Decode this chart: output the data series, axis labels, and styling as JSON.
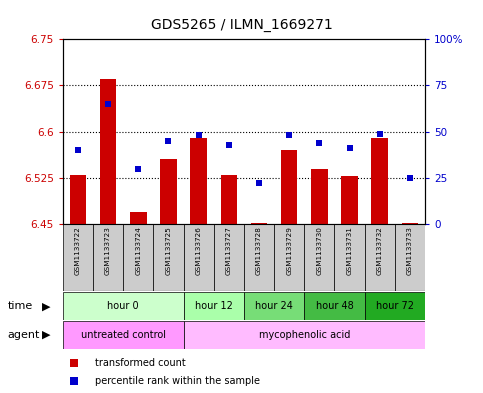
{
  "title": "GDS5265 / ILMN_1669271",
  "samples": [
    "GSM1133722",
    "GSM1133723",
    "GSM1133724",
    "GSM1133725",
    "GSM1133726",
    "GSM1133727",
    "GSM1133728",
    "GSM1133729",
    "GSM1133730",
    "GSM1133731",
    "GSM1133732",
    "GSM1133733"
  ],
  "bar_values": [
    6.53,
    6.685,
    6.47,
    6.555,
    6.59,
    6.53,
    6.452,
    6.57,
    6.54,
    6.528,
    6.59,
    6.452
  ],
  "bar_base": 6.45,
  "dot_values": [
    40,
    65,
    30,
    45,
    48,
    43,
    22,
    48,
    44,
    41,
    49,
    25
  ],
  "ylim_left": [
    6.45,
    6.75
  ],
  "ylim_right": [
    0,
    100
  ],
  "yticks_left": [
    6.45,
    6.525,
    6.6,
    6.675,
    6.75
  ],
  "yticks_right": [
    0,
    25,
    50,
    75,
    100
  ],
  "ytick_labels_left": [
    "6.45",
    "6.525",
    "6.6",
    "6.675",
    "6.75"
  ],
  "ytick_labels_right": [
    "0",
    "25",
    "50",
    "75",
    "100%"
  ],
  "grid_lines": [
    6.525,
    6.6,
    6.675
  ],
  "bar_color": "#cc0000",
  "dot_color": "#0000cc",
  "time_groups": [
    {
      "label": "hour 0",
      "start": 0,
      "end": 3,
      "color": "#ccffcc"
    },
    {
      "label": "hour 12",
      "start": 4,
      "end": 5,
      "color": "#aaffaa"
    },
    {
      "label": "hour 24",
      "start": 6,
      "end": 7,
      "color": "#66dd66"
    },
    {
      "label": "hour 48",
      "start": 8,
      "end": 9,
      "color": "#44bb44"
    },
    {
      "label": "hour 72",
      "start": 10,
      "end": 11,
      "color": "#22aa22"
    }
  ],
  "agent_groups": [
    {
      "label": "untreated control",
      "start": 0,
      "end": 3,
      "color": "#ff99ff"
    },
    {
      "label": "mycophenolic acid",
      "start": 4,
      "end": 11,
      "color": "#ffbbff"
    }
  ],
  "legend_items": [
    {
      "label": "transformed count",
      "color": "#cc0000"
    },
    {
      "label": "percentile rank within the sample",
      "color": "#0000cc"
    }
  ],
  "bg_color": "#ffffff",
  "sample_bg_color": "#cccccc",
  "title_fontsize": 10,
  "tick_fontsize": 7.5,
  "bar_width": 0.55
}
